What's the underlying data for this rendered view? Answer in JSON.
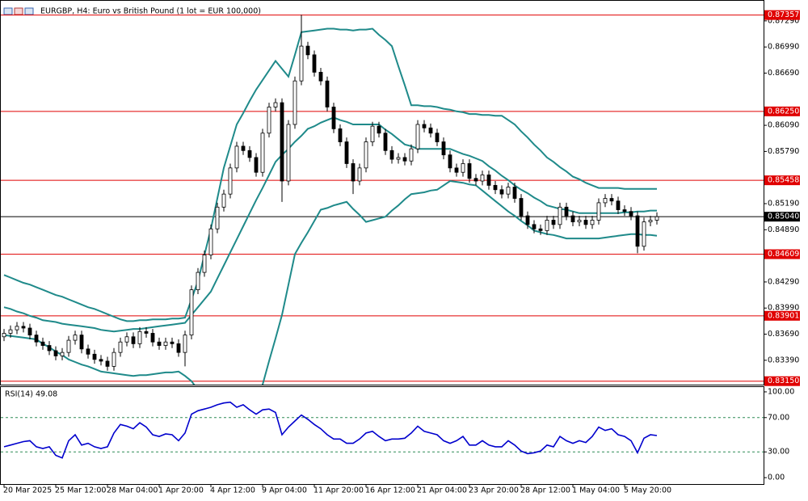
{
  "chart_data": {
    "type": "candlestick",
    "title": "EURGBP, H4:  Euro vs British Pound (1 lot = EUR 100,000)",
    "categories": [
      "20 Mar 2025",
      null,
      null,
      null,
      null,
      null,
      null,
      null,
      "25 Mar 12:00",
      null,
      null,
      null,
      null,
      null,
      null,
      null,
      "28 Mar 04:00",
      null,
      null,
      null,
      null,
      null,
      null,
      null,
      "1 Apr 20:00",
      null,
      null,
      null,
      null,
      null,
      null,
      null,
      "4 Apr 12:00",
      null,
      null,
      null,
      null,
      null,
      null,
      null,
      "9 Apr 04:00",
      null,
      null,
      null,
      null,
      null,
      null,
      null,
      "11 Apr 20:00",
      null,
      null,
      null,
      null,
      null,
      null,
      null,
      "16 Apr 12:00",
      null,
      null,
      null,
      null,
      null,
      null,
      null,
      "21 Apr 04:00",
      null,
      null,
      null,
      null,
      null,
      null,
      null,
      "23 Apr 20:00",
      null,
      null,
      null,
      null,
      null,
      null,
      null,
      "28 Apr 12:00",
      null,
      null,
      null,
      null,
      null,
      null,
      null,
      "1 May 04:00",
      null,
      null,
      null,
      null,
      null,
      null,
      null,
      "5 May 20:00",
      null,
      null,
      null,
      null,
      null
    ],
    "open": [
      0.8366,
      0.837,
      0.8374,
      0.8378,
      0.8376,
      0.8368,
      0.836,
      0.8356,
      0.835,
      0.8344,
      0.8348,
      0.8362,
      0.8368,
      0.8352,
      0.8346,
      0.834,
      0.8338,
      0.8332,
      0.8348,
      0.836,
      0.8366,
      0.8358,
      0.8372,
      0.837,
      0.836,
      0.8356,
      0.836,
      0.8358,
      0.8348,
      0.8368,
      0.842,
      0.844,
      0.846,
      0.849,
      0.8515,
      0.853,
      0.856,
      0.8585,
      0.858,
      0.8572,
      0.8555,
      0.86,
      0.863,
      0.8635,
      0.8545,
      0.861,
      0.866,
      0.87,
      0.869,
      0.867,
      0.866,
      0.863,
      0.8605,
      0.859,
      0.8565,
      0.8545,
      0.856,
      0.859,
      0.8608,
      0.86,
      0.858,
      0.857,
      0.8572,
      0.8568,
      0.8582,
      0.861,
      0.8606,
      0.86,
      0.859,
      0.8575,
      0.856,
      0.8555,
      0.8565,
      0.8548,
      0.8545,
      0.8552,
      0.854,
      0.8535,
      0.853,
      0.8538,
      0.8525,
      0.8505,
      0.8495,
      0.849,
      0.8488,
      0.85,
      0.8495,
      0.8515,
      0.8505,
      0.8498,
      0.85,
      0.8495,
      0.85,
      0.852,
      0.8525,
      0.8522,
      0.8512,
      0.851,
      0.8505,
      0.847,
      0.8498,
      0.85
    ],
    "high": [
      0.8375,
      0.8379,
      0.8383,
      0.8383,
      0.8381,
      0.8373,
      0.8365,
      0.8361,
      0.8355,
      0.8353,
      0.8367,
      0.8373,
      0.8373,
      0.8357,
      0.8351,
      0.8345,
      0.8343,
      0.8353,
      0.8365,
      0.8371,
      0.8371,
      0.8377,
      0.8377,
      0.8375,
      0.8365,
      0.8365,
      0.8365,
      0.8363,
      0.8373,
      0.8425,
      0.8445,
      0.8465,
      0.8495,
      0.852,
      0.8535,
      0.8565,
      0.859,
      0.859,
      0.8585,
      0.8577,
      0.8605,
      0.8635,
      0.864,
      0.864,
      0.8615,
      0.8665,
      0.8736,
      0.8705,
      0.8695,
      0.8675,
      0.8665,
      0.8635,
      0.861,
      0.8595,
      0.857,
      0.8565,
      0.8595,
      0.8613,
      0.8613,
      0.8605,
      0.8585,
      0.8577,
      0.8577,
      0.8587,
      0.8615,
      0.8615,
      0.8611,
      0.8605,
      0.8595,
      0.858,
      0.8565,
      0.857,
      0.857,
      0.8553,
      0.8557,
      0.8557,
      0.8545,
      0.854,
      0.8543,
      0.8543,
      0.853,
      0.851,
      0.85,
      0.8495,
      0.8505,
      0.8505,
      0.852,
      0.852,
      0.851,
      0.8505,
      0.8505,
      0.8505,
      0.8525,
      0.853,
      0.853,
      0.8527,
      0.8517,
      0.8515,
      0.851,
      0.8503,
      0.8505,
      0.8509
    ],
    "low": [
      0.8361,
      0.8365,
      0.8369,
      0.8371,
      0.8363,
      0.8355,
      0.8351,
      0.8345,
      0.8339,
      0.8339,
      0.8343,
      0.8357,
      0.8347,
      0.8341,
      0.8335,
      0.8333,
      0.8327,
      0.8327,
      0.8343,
      0.8355,
      0.8353,
      0.8353,
      0.8365,
      0.8355,
      0.8351,
      0.8351,
      0.8353,
      0.8343,
      0.8332,
      0.8363,
      0.8415,
      0.8435,
      0.8455,
      0.8485,
      0.851,
      0.8525,
      0.8555,
      0.8575,
      0.8567,
      0.855,
      0.855,
      0.8595,
      0.8625,
      0.8521,
      0.854,
      0.8605,
      0.8655,
      0.8685,
      0.8665,
      0.8655,
      0.8625,
      0.86,
      0.8585,
      0.856,
      0.853,
      0.854,
      0.8555,
      0.8585,
      0.8595,
      0.8575,
      0.8565,
      0.8565,
      0.8563,
      0.8563,
      0.8577,
      0.8601,
      0.8595,
      0.8585,
      0.857,
      0.8555,
      0.855,
      0.855,
      0.8543,
      0.854,
      0.854,
      0.8535,
      0.853,
      0.8525,
      0.8525,
      0.852,
      0.85,
      0.849,
      0.8485,
      0.8483,
      0.8483,
      0.849,
      0.849,
      0.85,
      0.8493,
      0.8493,
      0.849,
      0.849,
      0.8495,
      0.8515,
      0.8517,
      0.8507,
      0.8505,
      0.85,
      0.8462,
      0.8465,
      0.8493,
      0.8495
    ],
    "close": [
      0.837,
      0.8374,
      0.8378,
      0.8376,
      0.8368,
      0.836,
      0.8356,
      0.835,
      0.8344,
      0.8348,
      0.8362,
      0.8368,
      0.8352,
      0.8346,
      0.834,
      0.8338,
      0.8332,
      0.8348,
      0.836,
      0.8366,
      0.8358,
      0.8372,
      0.837,
      0.836,
      0.8356,
      0.836,
      0.8358,
      0.8348,
      0.8368,
      0.842,
      0.844,
      0.846,
      0.849,
      0.8515,
      0.853,
      0.856,
      0.8585,
      0.858,
      0.8572,
      0.8555,
      0.86,
      0.863,
      0.8635,
      0.8545,
      0.861,
      0.866,
      0.87,
      0.869,
      0.867,
      0.866,
      0.863,
      0.8605,
      0.859,
      0.8565,
      0.8545,
      0.856,
      0.859,
      0.8608,
      0.86,
      0.858,
      0.857,
      0.8572,
      0.8568,
      0.8582,
      0.861,
      0.8606,
      0.86,
      0.859,
      0.8575,
      0.856,
      0.8555,
      0.8565,
      0.8548,
      0.8545,
      0.8552,
      0.854,
      0.8535,
      0.853,
      0.8538,
      0.8525,
      0.8505,
      0.8495,
      0.849,
      0.8488,
      0.85,
      0.8495,
      0.8515,
      0.8505,
      0.8498,
      0.85,
      0.8495,
      0.85,
      0.852,
      0.8525,
      0.8522,
      0.8512,
      0.851,
      0.8505,
      0.847,
      0.8498,
      0.85,
      0.8504
    ],
    "bull_color": "#ffffff",
    "bear_color": "#000000",
    "bands": {
      "color": "#1f8a8a",
      "upper": [
        0.8437,
        0.8434,
        0.8431,
        0.8428,
        0.8426,
        0.8423,
        0.842,
        0.8417,
        0.8414,
        0.8412,
        0.8409,
        0.8406,
        0.8403,
        0.84,
        0.8398,
        0.8395,
        0.8392,
        0.8389,
        0.8386,
        0.8384,
        0.8384,
        0.8385,
        0.8385,
        0.8386,
        0.8386,
        0.8386,
        0.8387,
        0.8387,
        0.8388,
        0.8409,
        0.843,
        0.846,
        0.849,
        0.8525,
        0.856,
        0.8585,
        0.861,
        0.8623,
        0.8637,
        0.865,
        0.8661,
        0.8672,
        0.8683,
        0.8674,
        0.8665,
        0.869,
        0.8716,
        0.8717,
        0.8718,
        0.8719,
        0.872,
        0.872,
        0.8719,
        0.8719,
        0.8718,
        0.8719,
        0.8719,
        0.872,
        0.8713,
        0.8707,
        0.87,
        0.8677,
        0.8655,
        0.8632,
        0.8632,
        0.8631,
        0.8631,
        0.863,
        0.8628,
        0.8627,
        0.8625,
        0.8624,
        0.8622,
        0.8622,
        0.8621,
        0.8621,
        0.862,
        0.862,
        0.8615,
        0.861,
        0.8602,
        0.8595,
        0.8587,
        0.858,
        0.8572,
        0.8567,
        0.8561,
        0.8556,
        0.855,
        0.8547,
        0.8543,
        0.854,
        0.8537,
        0.8537,
        0.8537,
        0.8537,
        0.8536,
        0.8536,
        0.8536,
        0.8536,
        0.8536,
        0.8536
      ],
      "middle": [
        0.84,
        0.8398,
        0.8395,
        0.8393,
        0.839,
        0.8388,
        0.8385,
        0.8384,
        0.8383,
        0.8381,
        0.838,
        0.8379,
        0.8378,
        0.8377,
        0.8376,
        0.8374,
        0.8373,
        0.8372,
        0.8373,
        0.8374,
        0.8375,
        0.8375,
        0.8376,
        0.8377,
        0.8378,
        0.8379,
        0.838,
        0.8381,
        0.8382,
        0.8391,
        0.84,
        0.8409,
        0.8418,
        0.8433,
        0.8448,
        0.8463,
        0.8478,
        0.8493,
        0.8508,
        0.8523,
        0.8537,
        0.8552,
        0.8567,
        0.8575,
        0.8582,
        0.859,
        0.8597,
        0.8605,
        0.8608,
        0.8612,
        0.8615,
        0.8618,
        0.8615,
        0.8613,
        0.861,
        0.861,
        0.861,
        0.861,
        0.861,
        0.8604,
        0.8599,
        0.8593,
        0.8587,
        0.8585,
        0.8582,
        0.8582,
        0.8582,
        0.8582,
        0.8582,
        0.8582,
        0.8579,
        0.8576,
        0.8574,
        0.8571,
        0.8568,
        0.8562,
        0.8557,
        0.8551,
        0.8546,
        0.854,
        0.8535,
        0.8531,
        0.8526,
        0.8522,
        0.8517,
        0.8515,
        0.8513,
        0.8512,
        0.851,
        0.8508,
        0.8508,
        0.8508,
        0.8508,
        0.8508,
        0.8508,
        0.8508,
        0.8509,
        0.8509,
        0.851,
        0.851,
        0.8511,
        0.8511
      ],
      "lower": [
        0.8368,
        0.8367,
        0.8366,
        0.8365,
        0.8364,
        0.8363,
        0.8358,
        0.8354,
        0.8349,
        0.8345,
        0.834,
        0.8337,
        0.8334,
        0.8332,
        0.8329,
        0.8326,
        0.8325,
        0.8324,
        0.8323,
        0.8322,
        0.8321,
        0.8322,
        0.8322,
        0.8323,
        0.8324,
        0.8325,
        0.8325,
        0.8326,
        0.8321,
        0.8315,
        0.8305,
        0.8295,
        0.829,
        0.8285,
        0.828,
        0.8275,
        0.827,
        0.8275,
        0.828,
        0.8285,
        0.8311,
        0.8338,
        0.8364,
        0.8391,
        0.8426,
        0.8461,
        0.8474,
        0.8486,
        0.8499,
        0.8512,
        0.8514,
        0.8517,
        0.8519,
        0.8521,
        0.8513,
        0.8506,
        0.8498,
        0.85,
        0.8502,
        0.8504,
        0.8511,
        0.8517,
        0.8524,
        0.853,
        0.8531,
        0.8532,
        0.8534,
        0.8535,
        0.854,
        0.8545,
        0.8544,
        0.8543,
        0.8541,
        0.854,
        0.8534,
        0.8528,
        0.8522,
        0.8516,
        0.851,
        0.8505,
        0.8499,
        0.8494,
        0.8488,
        0.8486,
        0.8484,
        0.8483,
        0.8481,
        0.8479,
        0.8479,
        0.8479,
        0.8479,
        0.8479,
        0.8479,
        0.848,
        0.8481,
        0.8482,
        0.8483,
        0.8484,
        0.8484,
        0.8483,
        0.8483,
        0.8482
      ]
    },
    "ylim": [
      0.8311,
      0.8753
    ],
    "yticks": [
      {
        "value": 0.8729,
        "label": "0.87290"
      },
      {
        "value": 0.8699,
        "label": "0.86990"
      },
      {
        "value": 0.8669,
        "label": "0.86690"
      },
      {
        "value": 0.8609,
        "label": "0.86090"
      },
      {
        "value": 0.8579,
        "label": "0.85790"
      },
      {
        "value": 0.8519,
        "label": "0.85190"
      },
      {
        "value": 0.8489,
        "label": "0.84890"
      },
      {
        "value": 0.8429,
        "label": "0.84290"
      },
      {
        "value": 0.8399,
        "label": "0.83990"
      },
      {
        "value": 0.8369,
        "label": "0.83690"
      },
      {
        "value": 0.8339,
        "label": "0.83390"
      }
    ],
    "levels": [
      0.87357,
      0.8625,
      0.85458,
      0.84609,
      0.83901,
      0.8315
    ],
    "level_labels": [
      "0.87357",
      "0.86250",
      "0.85458",
      "0.84609",
      "0.83901",
      "0.83150"
    ],
    "level_color": "#e00000",
    "price": {
      "value": 0.8504,
      "label": "0.85040",
      "color": "#000000"
    },
    "rsi": {
      "label": "RSI(14)",
      "color": "#0000cd",
      "values": [
        36,
        38,
        40,
        42,
        43,
        36,
        34,
        36,
        26,
        23,
        43,
        50,
        38,
        40,
        36,
        34,
        36,
        52,
        62,
        60,
        57,
        64,
        59,
        50,
        48,
        51,
        50,
        43,
        52,
        74,
        78,
        80,
        82,
        85,
        87,
        88,
        82,
        85,
        79,
        74,
        79,
        80,
        76,
        50,
        59,
        66,
        73,
        68,
        62,
        57,
        50,
        45,
        45,
        40,
        40,
        45,
        52,
        54,
        48,
        43,
        45,
        45,
        46,
        52,
        60,
        54,
        52,
        50,
        43,
        40,
        43,
        48,
        38,
        38,
        43,
        38,
        36,
        36,
        43,
        38,
        31,
        28,
        29,
        31,
        38,
        36,
        48,
        43,
        40,
        43,
        41,
        48,
        59,
        55,
        57,
        50,
        48,
        43,
        29,
        46,
        50,
        49.08
      ],
      "ylim": [
        -8.4,
        105.6
      ],
      "yticks": [
        {
          "value": 100,
          "label": "100.00"
        },
        {
          "value": 70,
          "label": "70.00"
        },
        {
          "value": 30,
          "label": "30.00"
        },
        {
          "value": 0,
          "label": "0.00"
        }
      ],
      "levels": [
        30,
        70
      ]
    }
  }
}
